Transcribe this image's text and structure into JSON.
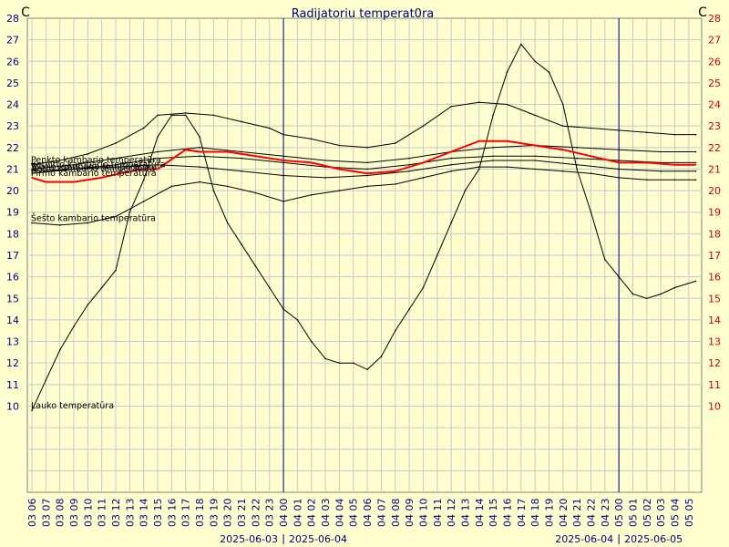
{
  "chart_data": {
    "type": "line",
    "title": "Radijatoriu temperat0ra",
    "ylabel_left": "C",
    "ylabel_right": "C",
    "ylim": [
      6,
      28
    ],
    "y_ticks": [
      10,
      11,
      12,
      13,
      14,
      15,
      16,
      17,
      18,
      19,
      20,
      21,
      22,
      23,
      24,
      25,
      26,
      27,
      28
    ],
    "x_tick_labels": [
      "03 06",
      "03 07",
      "03 08",
      "03 09",
      "03 10",
      "03 11",
      "03 12",
      "03 13",
      "03 14",
      "03 15",
      "03 16",
      "03 17",
      "03 18",
      "03 19",
      "03 20",
      "03 21",
      "03 22",
      "03 23",
      "04 00",
      "04 01",
      "04 02",
      "04 03",
      "04 04",
      "04 05",
      "04 06",
      "04 07",
      "04 08",
      "04 09",
      "04 10",
      "04 11",
      "04 12",
      "04 13",
      "04 14",
      "04 15",
      "04 16",
      "04 17",
      "04 18",
      "04 19",
      "04 20",
      "04 21",
      "04 22",
      "04 23",
      "05 00",
      "05 01",
      "05 02",
      "05 03",
      "05 04",
      "05 05"
    ],
    "day_dividers": [
      {
        "label_left": "2025-06-03",
        "label_right": "2025-06-04"
      },
      {
        "label_left": "2025-06-04",
        "label_right": "2025-06-05"
      }
    ],
    "x_hours_start": 6,
    "grid": true,
    "colors": {
      "background": "#fffecf",
      "grid": "#c8c8c8",
      "line": "#000000",
      "highlight": "#ff0000",
      "title": "#000080",
      "tick_left": "#000080",
      "tick_right": "#cc0000"
    },
    "series": [
      {
        "name": "Lauko temperatūra",
        "color": "#000000",
        "x": [
          6,
          7,
          8,
          9,
          10,
          11,
          12,
          13,
          14,
          15,
          16,
          17,
          18,
          19,
          20,
          21,
          22,
          23,
          24,
          25,
          26,
          27,
          28,
          29,
          30,
          31,
          32,
          33,
          34,
          35,
          36,
          37,
          38,
          39,
          40,
          41,
          42,
          43,
          44,
          45,
          46,
          47,
          48,
          49,
          50,
          51,
          52,
          53.5
        ],
        "y": [
          9.8,
          11.2,
          12.6,
          13.7,
          14.7,
          15.5,
          16.3,
          19.0,
          20.5,
          22.5,
          23.5,
          23.5,
          22.5,
          20.0,
          18.5,
          17.5,
          16.5,
          15.5,
          14.5,
          14.0,
          13.0,
          12.2,
          12.0,
          12.0,
          11.7,
          12.3,
          13.5,
          14.5,
          15.5,
          17.0,
          18.5,
          20.0,
          21.0,
          23.5,
          25.5,
          26.8,
          26.0,
          25.5,
          24.0,
          21.0,
          19.0,
          16.8,
          16.0,
          15.2,
          15.0,
          15.2,
          15.5,
          15.8
        ]
      },
      {
        "name": "Penkto kambario temperatūra",
        "color": "#000000",
        "x": [
          6,
          8,
          10,
          12,
          14,
          15,
          17,
          19,
          21,
          23,
          24,
          26,
          28,
          30,
          32,
          34,
          36,
          38,
          40,
          42,
          44,
          46,
          48,
          50,
          52,
          53.5
        ],
        "y": [
          21.2,
          21.4,
          21.7,
          22.2,
          22.9,
          23.5,
          23.6,
          23.5,
          23.2,
          22.9,
          22.6,
          22.4,
          22.1,
          22.0,
          22.2,
          23.0,
          23.9,
          24.1,
          24.0,
          23.5,
          23.0,
          22.9,
          22.8,
          22.7,
          22.6,
          22.6
        ]
      },
      {
        "name": "Ketvirto kambario temperatūra",
        "color": "#000000",
        "x": [
          6,
          9,
          12,
          15,
          18,
          21,
          24,
          27,
          30,
          33,
          36,
          39,
          42,
          45,
          48,
          51,
          53.5
        ],
        "y": [
          21.0,
          21.2,
          21.5,
          21.8,
          22.0,
          21.8,
          21.6,
          21.4,
          21.3,
          21.5,
          21.8,
          22.0,
          22.1,
          22.0,
          21.9,
          21.8,
          21.8
        ]
      },
      {
        "name": "Antro kambario temperatūra",
        "color": "#000000",
        "x": [
          6,
          9,
          12,
          15,
          18,
          21,
          24,
          27,
          30,
          33,
          36,
          39,
          42,
          45,
          48,
          51,
          53.5
        ],
        "y": [
          20.8,
          21.0,
          21.2,
          21.5,
          21.6,
          21.5,
          21.3,
          21.1,
          21.0,
          21.2,
          21.5,
          21.6,
          21.6,
          21.5,
          21.4,
          21.3,
          21.3
        ]
      },
      {
        "name": "Pirmo kambario temperatūra",
        "color": "#ff0000",
        "x": [
          6,
          7,
          9,
          11,
          13,
          14,
          15,
          17,
          18,
          20,
          22,
          24,
          26,
          28,
          30,
          32,
          34,
          36,
          38,
          40,
          42,
          44,
          46,
          48,
          50,
          52,
          53.5
        ],
        "y": [
          20.6,
          20.4,
          20.4,
          20.6,
          20.9,
          21.0,
          21.0,
          21.9,
          21.8,
          21.8,
          21.6,
          21.4,
          21.3,
          21.0,
          20.8,
          20.9,
          21.3,
          21.8,
          22.3,
          22.3,
          22.1,
          21.9,
          21.6,
          21.3,
          21.3,
          21.2,
          21.2
        ]
      },
      {
        "name": "Trečio kambario temperatūra",
        "color": "#000000",
        "x": [
          6,
          9,
          12,
          15,
          18,
          21,
          24,
          27,
          30,
          33,
          36,
          39,
          42,
          45,
          48,
          51,
          53.5
        ],
        "y": [
          20.9,
          21.0,
          21.1,
          21.2,
          21.1,
          20.9,
          20.7,
          20.6,
          20.7,
          20.9,
          21.2,
          21.4,
          21.4,
          21.2,
          21.0,
          20.9,
          20.9
        ]
      },
      {
        "name": "Šešto kambario temperatūra",
        "color": "#000000",
        "x": [
          6,
          8,
          10,
          12,
          14,
          16,
          18,
          20,
          22,
          24,
          26,
          28,
          30,
          32,
          34,
          36,
          38,
          40,
          42,
          44,
          46,
          48,
          50,
          52,
          53.5
        ],
        "y": [
          18.5,
          18.4,
          18.5,
          18.8,
          19.5,
          20.2,
          20.4,
          20.2,
          19.9,
          19.5,
          19.8,
          20.0,
          20.2,
          20.3,
          20.6,
          20.9,
          21.1,
          21.1,
          21.0,
          20.9,
          20.8,
          20.6,
          20.5,
          20.5,
          20.5
        ]
      }
    ]
  }
}
